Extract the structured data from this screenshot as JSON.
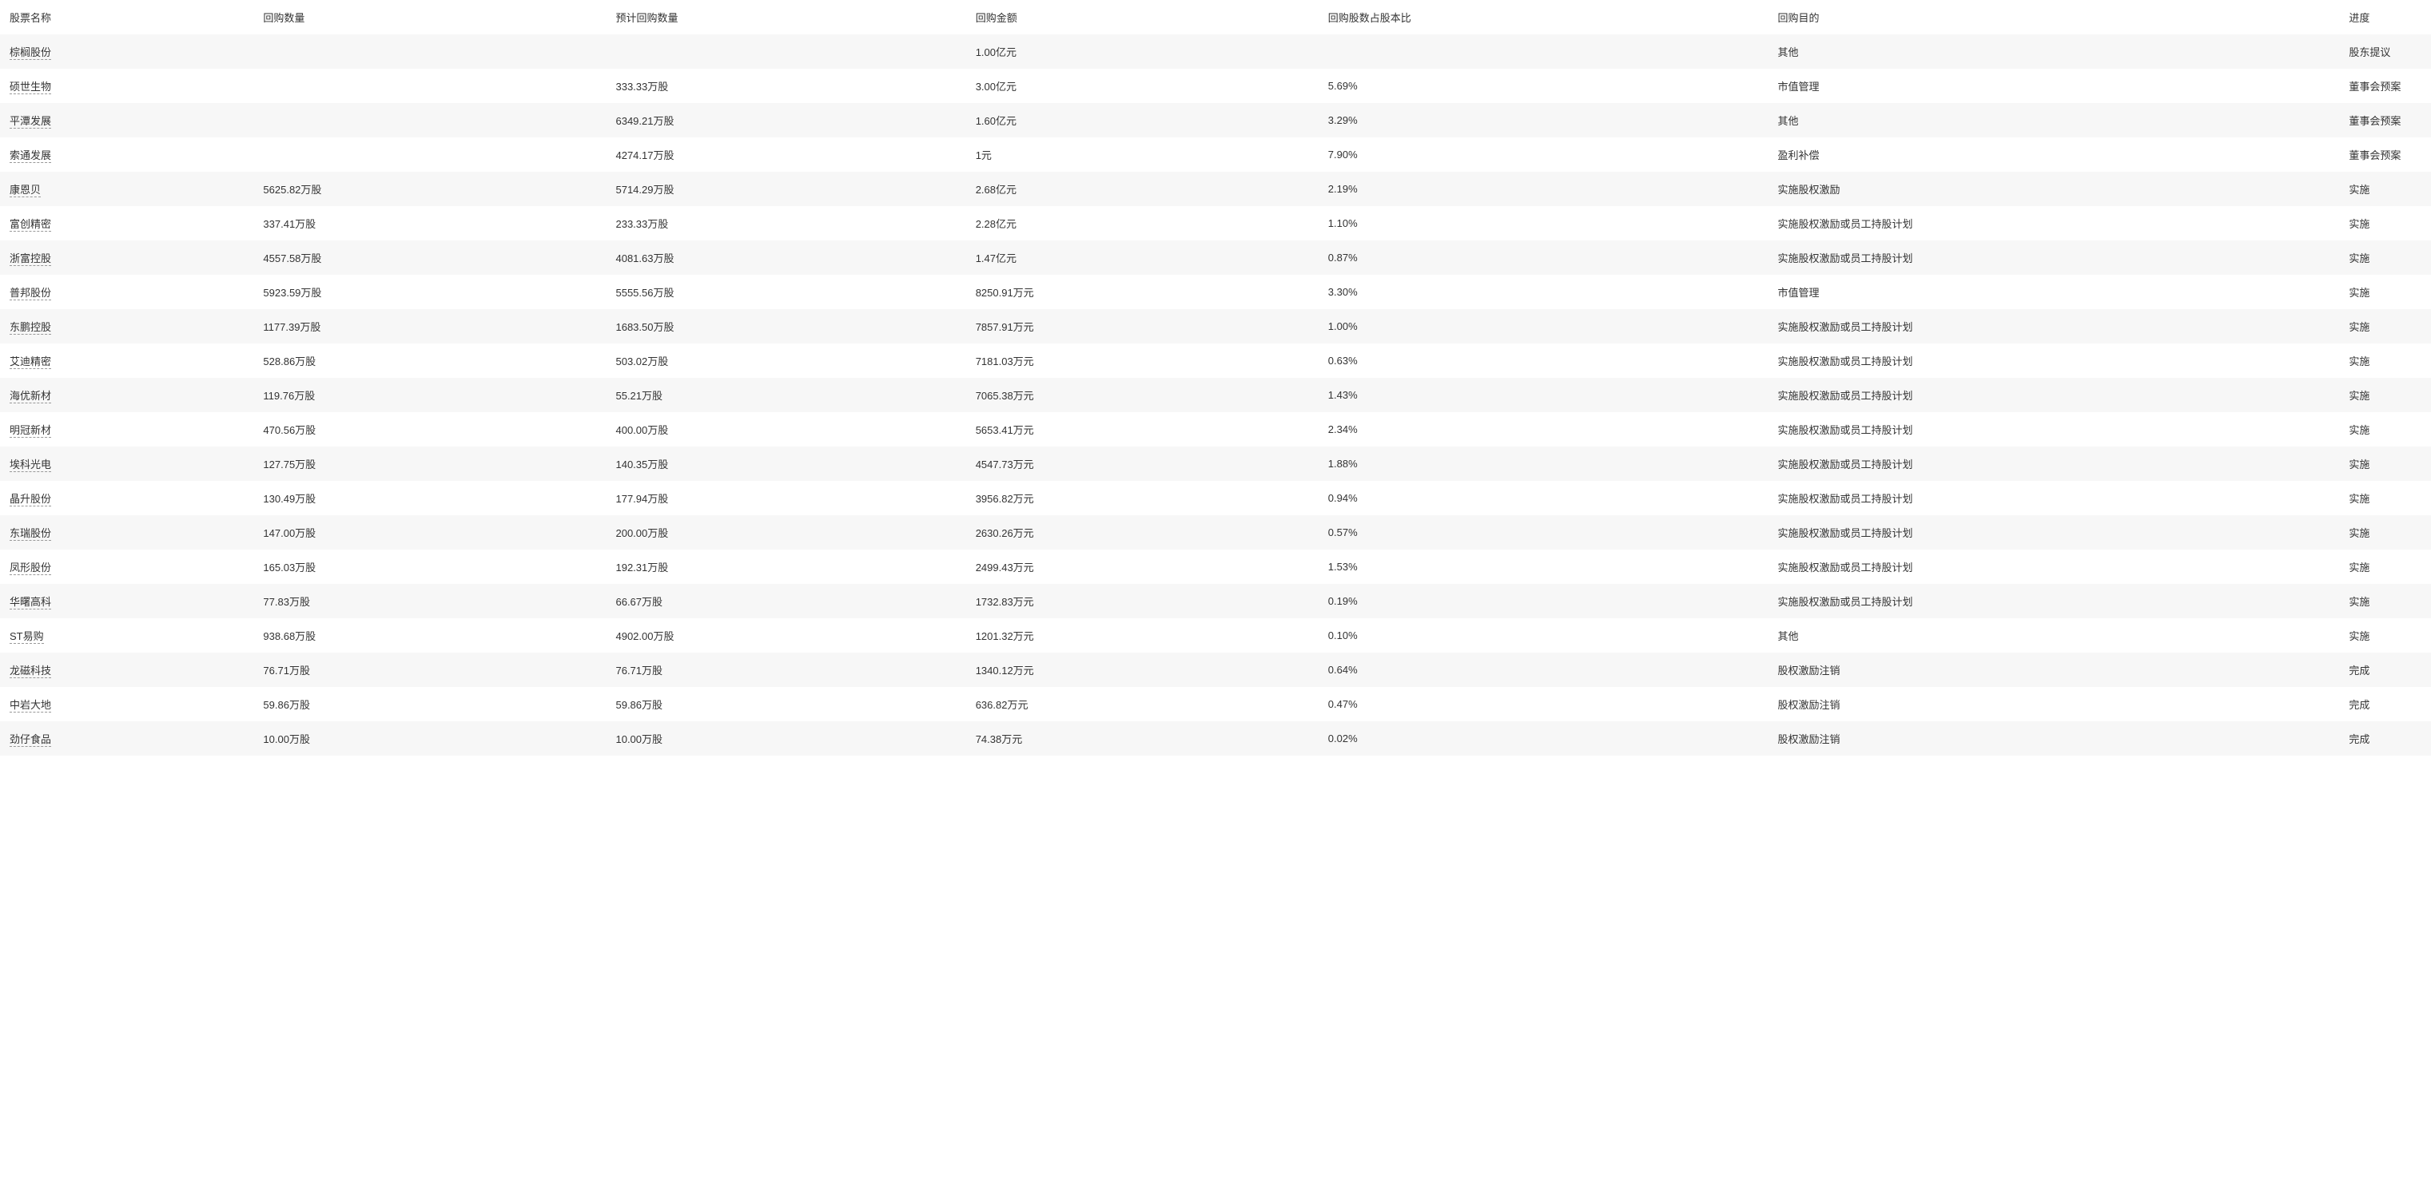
{
  "table": {
    "columns": [
      "股票名称",
      "回购数量",
      "预计回购数量",
      "回购金额",
      "回购股数占股本比",
      "回购目的",
      "进度"
    ],
    "rows": [
      {
        "name": "棕榈股份",
        "qty": "",
        "est_qty": "",
        "amount": "1.00亿元",
        "ratio": "",
        "purpose": "其他",
        "progress": "股东提议"
      },
      {
        "name": "硕世生物",
        "qty": "",
        "est_qty": "333.33万股",
        "amount": "3.00亿元",
        "ratio": "5.69%",
        "purpose": "市值管理",
        "progress": "董事会预案"
      },
      {
        "name": "平潭发展",
        "qty": "",
        "est_qty": "6349.21万股",
        "amount": "1.60亿元",
        "ratio": "3.29%",
        "purpose": "其他",
        "progress": "董事会预案"
      },
      {
        "name": "索通发展",
        "qty": "",
        "est_qty": "4274.17万股",
        "amount": "1元",
        "ratio": "7.90%",
        "purpose": "盈利补偿",
        "progress": "董事会预案"
      },
      {
        "name": "康恩贝",
        "qty": "5625.82万股",
        "est_qty": "5714.29万股",
        "amount": "2.68亿元",
        "ratio": "2.19%",
        "purpose": "实施股权激励",
        "progress": "实施"
      },
      {
        "name": "富创精密",
        "qty": "337.41万股",
        "est_qty": "233.33万股",
        "amount": "2.28亿元",
        "ratio": "1.10%",
        "purpose": "实施股权激励或员工持股计划",
        "progress": "实施"
      },
      {
        "name": "浙富控股",
        "qty": "4557.58万股",
        "est_qty": "4081.63万股",
        "amount": "1.47亿元",
        "ratio": "0.87%",
        "purpose": "实施股权激励或员工持股计划",
        "progress": "实施"
      },
      {
        "name": "普邦股份",
        "qty": "5923.59万股",
        "est_qty": "5555.56万股",
        "amount": "8250.91万元",
        "ratio": "3.30%",
        "purpose": "市值管理",
        "progress": "实施"
      },
      {
        "name": "东鹏控股",
        "qty": "1177.39万股",
        "est_qty": "1683.50万股",
        "amount": "7857.91万元",
        "ratio": "1.00%",
        "purpose": "实施股权激励或员工持股计划",
        "progress": "实施"
      },
      {
        "name": "艾迪精密",
        "qty": "528.86万股",
        "est_qty": "503.02万股",
        "amount": "7181.03万元",
        "ratio": "0.63%",
        "purpose": "实施股权激励或员工持股计划",
        "progress": "实施"
      },
      {
        "name": "海优新材",
        "qty": "119.76万股",
        "est_qty": "55.21万股",
        "amount": "7065.38万元",
        "ratio": "1.43%",
        "purpose": "实施股权激励或员工持股计划",
        "progress": "实施"
      },
      {
        "name": "明冠新材",
        "qty": "470.56万股",
        "est_qty": "400.00万股",
        "amount": "5653.41万元",
        "ratio": "2.34%",
        "purpose": "实施股权激励或员工持股计划",
        "progress": "实施"
      },
      {
        "name": "埃科光电",
        "qty": "127.75万股",
        "est_qty": "140.35万股",
        "amount": "4547.73万元",
        "ratio": "1.88%",
        "purpose": "实施股权激励或员工持股计划",
        "progress": "实施"
      },
      {
        "name": "晶升股份",
        "qty": "130.49万股",
        "est_qty": "177.94万股",
        "amount": "3956.82万元",
        "ratio": "0.94%",
        "purpose": "实施股权激励或员工持股计划",
        "progress": "实施"
      },
      {
        "name": "东瑞股份",
        "qty": "147.00万股",
        "est_qty": "200.00万股",
        "amount": "2630.26万元",
        "ratio": "0.57%",
        "purpose": "实施股权激励或员工持股计划",
        "progress": "实施"
      },
      {
        "name": "凤形股份",
        "qty": "165.03万股",
        "est_qty": "192.31万股",
        "amount": "2499.43万元",
        "ratio": "1.53%",
        "purpose": "实施股权激励或员工持股计划",
        "progress": "实施"
      },
      {
        "name": "华曙高科",
        "qty": "77.83万股",
        "est_qty": "66.67万股",
        "amount": "1732.83万元",
        "ratio": "0.19%",
        "purpose": "实施股权激励或员工持股计划",
        "progress": "实施"
      },
      {
        "name": "ST易购",
        "qty": "938.68万股",
        "est_qty": "4902.00万股",
        "amount": "1201.32万元",
        "ratio": "0.10%",
        "purpose": "其他",
        "progress": "实施"
      },
      {
        "name": "龙磁科技",
        "qty": "76.71万股",
        "est_qty": "76.71万股",
        "amount": "1340.12万元",
        "ratio": "0.64%",
        "purpose": "股权激励注销",
        "progress": "完成"
      },
      {
        "name": "中岩大地",
        "qty": "59.86万股",
        "est_qty": "59.86万股",
        "amount": "636.82万元",
        "ratio": "0.47%",
        "purpose": "股权激励注销",
        "progress": "完成"
      },
      {
        "name": "劲仔食品",
        "qty": "10.00万股",
        "est_qty": "10.00万股",
        "amount": "74.38万元",
        "ratio": "0.02%",
        "purpose": "股权激励注销",
        "progress": "完成"
      }
    ]
  }
}
